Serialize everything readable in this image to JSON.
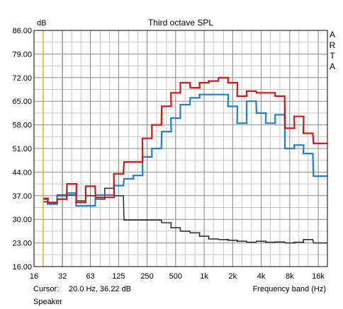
{
  "chart_data": {
    "type": "line",
    "title": "Third octave SPL",
    "ylabel": "dB",
    "xlabel": "Frequency band (Hz)",
    "software_label": [
      "A",
      "R",
      "T",
      "A"
    ],
    "y_ticks": [
      "86.00",
      "79.00",
      "72.00",
      "65.00",
      "58.00",
      "51.00",
      "44.00",
      "37.00",
      "30.00",
      "23.00",
      "16.00"
    ],
    "ylim": [
      16,
      86
    ],
    "x_scale": "log",
    "xlim": [
      16,
      20000
    ],
    "x_ticks": [
      {
        "label": "16",
        "value": 16
      },
      {
        "label": "32",
        "value": 32
      },
      {
        "label": "63",
        "value": 63
      },
      {
        "label": "125",
        "value": 125
      },
      {
        "label": "250",
        "value": 250
      },
      {
        "label": "500",
        "value": 500
      },
      {
        "label": "1k",
        "value": 1000
      },
      {
        "label": "2k",
        "value": 2000
      },
      {
        "label": "4k",
        "value": 4000
      },
      {
        "label": "8k",
        "value": 8000
      },
      {
        "label": "16k",
        "value": 16000
      }
    ],
    "grid": true,
    "bands": [
      20,
      25,
      31.5,
      40,
      50,
      63,
      80,
      100,
      125,
      160,
      200,
      250,
      315,
      400,
      500,
      630,
      800,
      1000,
      1250,
      1600,
      2000,
      2500,
      3150,
      4000,
      5000,
      6300,
      8000,
      10000,
      12500,
      16000,
      20000
    ],
    "series": [
      {
        "color": "#dd1111",
        "values": [
          36.2,
          35,
          36,
          40.5,
          35,
          39.8,
          36.5,
          36.5,
          43.5,
          47,
          47,
          54,
          58,
          63.5,
          67.5,
          70.5,
          69,
          70.5,
          71,
          72,
          70.5,
          66.5,
          68,
          67.5,
          67.5,
          66.5,
          57,
          60.5,
          55.5,
          52.5,
          52.5
        ]
      },
      {
        "color": "#1a7fe0",
        "values": [
          36,
          34.5,
          37,
          37.8,
          34,
          34,
          37.2,
          37.2,
          40,
          42,
          43,
          48.5,
          51,
          56,
          60,
          64,
          66,
          67,
          67,
          67,
          63.5,
          58.5,
          65,
          61.5,
          58.5,
          61,
          51,
          52,
          49.5,
          42.8,
          42.8
        ]
      },
      {
        "color": "#333333",
        "values": [
          35.2,
          34.8,
          37.2,
          37.2,
          35.5,
          37,
          36,
          39.2,
          37,
          29.8,
          29.8,
          29.8,
          29.8,
          29,
          27.5,
          26.5,
          26,
          25,
          24.2,
          24,
          23.8,
          23.5,
          23.2,
          23.5,
          23.2,
          23.3,
          23,
          23.2,
          24,
          23,
          23
        ]
      }
    ],
    "cursor": {
      "x": 20.0,
      "color": "#d4b000",
      "label": "Cursor:",
      "readout": "20.0 Hz, 36.22 dB"
    },
    "footer_label": "Speaker"
  }
}
